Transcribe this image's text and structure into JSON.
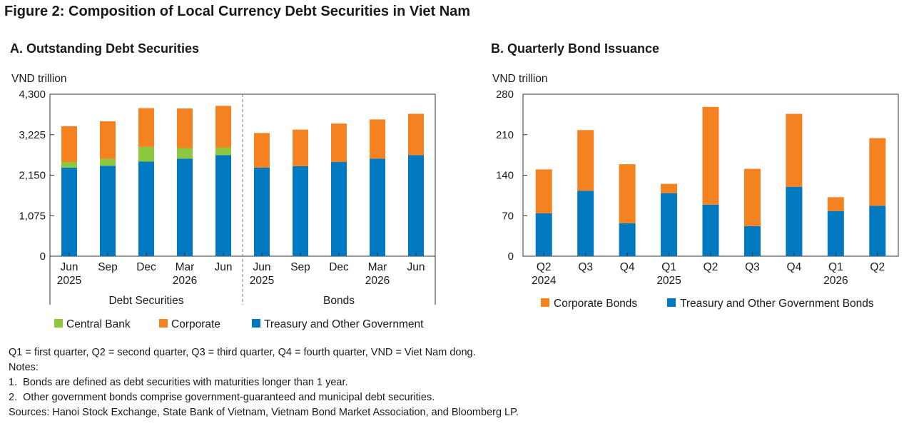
{
  "figure_title": "Figure 2: Composition of Local Currency Debt Securities in Viet Nam",
  "colors": {
    "central_bank": "#8dc63f",
    "corporate": "#f58220",
    "treasury": "#0079c1"
  },
  "chart_data": [
    {
      "type": "bar",
      "stacked": true,
      "title": "A. Outstanding Debt Securities",
      "ylabel": "VND trillion",
      "ylim": [
        0,
        4300
      ],
      "yticks": [
        "0",
        "1,075",
        "2,150",
        "3,225",
        "4,300"
      ],
      "ytick_values": [
        0,
        1075,
        2150,
        3225,
        4300
      ],
      "grid": false,
      "groups": [
        {
          "label": "Debt Securities",
          "categories": [
            [
              "Jun",
              "2025"
            ],
            [
              "Sep",
              ""
            ],
            [
              "Dec",
              ""
            ],
            [
              "Mar",
              "2026"
            ],
            [
              "Jun",
              ""
            ]
          ],
          "series": [
            {
              "name": "Treasury and Other Government",
              "values": [
                2350,
                2400,
                2510,
                2590,
                2680
              ]
            },
            {
              "name": "Central Bank",
              "values": [
                150,
                180,
                390,
                280,
                200
              ]
            },
            {
              "name": "Corporate",
              "values": [
                950,
                1000,
                1030,
                1050,
                1110
              ]
            }
          ]
        },
        {
          "label": "Bonds",
          "categories": [
            [
              "Jun",
              "2025"
            ],
            [
              "Sep",
              ""
            ],
            [
              "Dec",
              ""
            ],
            [
              "Mar",
              "2026"
            ],
            [
              "Jun",
              ""
            ]
          ],
          "series": [
            {
              "name": "Treasury and Other Government",
              "values": [
                2350,
                2390,
                2500,
                2590,
                2680
              ]
            },
            {
              "name": "Corporate",
              "values": [
                920,
                970,
                1020,
                1040,
                1100
              ]
            }
          ]
        }
      ],
      "legend": [
        "Central Bank",
        "Corporate",
        "Treasury and Other Government"
      ],
      "legend_position": "bottom"
    },
    {
      "type": "bar",
      "stacked": true,
      "title": "B. Quarterly Bond Issuance",
      "ylabel": "VND trillion",
      "ylim": [
        0,
        280
      ],
      "yticks": [
        "0",
        "70",
        "140",
        "210",
        "280"
      ],
      "ytick_values": [
        0,
        70,
        140,
        210,
        280
      ],
      "grid": false,
      "categories": [
        [
          "Q2",
          "2024"
        ],
        [
          "Q3",
          ""
        ],
        [
          "Q4",
          ""
        ],
        [
          "Q1",
          "2025"
        ],
        [
          "Q2",
          ""
        ],
        [
          "Q3",
          ""
        ],
        [
          "Q4",
          ""
        ],
        [
          "Q1",
          "2026"
        ],
        [
          "Q2",
          ""
        ]
      ],
      "series": [
        {
          "name": "Treasury and Other Government Bonds",
          "values": [
            74,
            113,
            57,
            109,
            89,
            52,
            120,
            78,
            87
          ]
        },
        {
          "name": "Corporate Bonds",
          "values": [
            76,
            105,
            102,
            16,
            169,
            99,
            126,
            24,
            117
          ]
        }
      ],
      "legend": [
        "Corporate Bonds",
        "Treasury and Other Government Bonds"
      ],
      "legend_position": "bottom"
    }
  ],
  "footer": {
    "abbreviations": "Q1 = first quarter, Q2 = second quarter, Q3 = third quarter, Q4 = fourth quarter, VND = Viet Nam dong.",
    "notes_label": "Notes:",
    "notes": [
      "1.  Bonds are defined as debt securities with maturities longer than 1 year.",
      "2.  Other government bonds comprise government-guaranteed and municipal debt securities."
    ],
    "sources": "Sources: Hanoi Stock Exchange, State Bank of Vietnam, Vietnam Bond Market Association, and Bloomberg LP."
  }
}
